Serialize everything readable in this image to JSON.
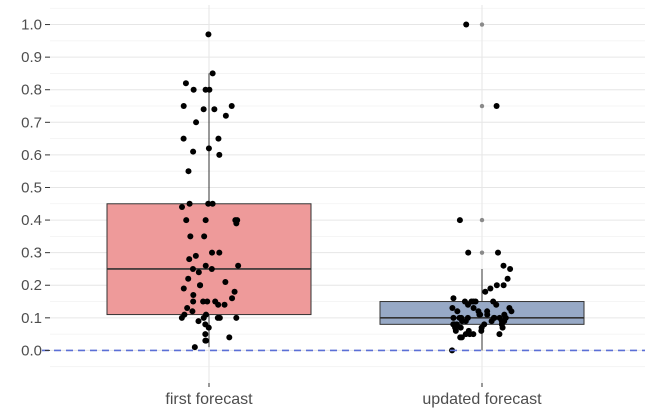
{
  "chart_data": {
    "type": "boxplot",
    "title": "",
    "xlabel": "",
    "ylabel": "",
    "ylim": [
      -0.1,
      1.06
    ],
    "y_ticks": [
      {
        "value": 0.0,
        "label": "0.0"
      },
      {
        "value": 0.1,
        "label": "0.1"
      },
      {
        "value": 0.2,
        "label": "0.2"
      },
      {
        "value": 0.3,
        "label": "0.3"
      },
      {
        "value": 0.4,
        "label": "0.4"
      },
      {
        "value": 0.5,
        "label": "0.5"
      },
      {
        "value": 0.6,
        "label": "0.6"
      },
      {
        "value": 0.7,
        "label": "0.7"
      },
      {
        "value": 0.8,
        "label": "0.8"
      },
      {
        "value": 0.9,
        "label": "0.9"
      },
      {
        "value": 1.0,
        "label": "1.0"
      }
    ],
    "reference_line": {
      "value": 0.0,
      "color": "#5b6fd6",
      "style": "dashed"
    },
    "grid": true,
    "categories": [
      "first forecast",
      "updated forecast"
    ],
    "boxes": [
      {
        "category": "first forecast",
        "color": "#ee9a9a",
        "q1": 0.11,
        "median": 0.25,
        "q3": 0.45,
        "whisker_low": 0.01,
        "whisker_high": 0.85,
        "outliers": [
          0.97
        ]
      },
      {
        "category": "updated forecast",
        "color": "#97a9c6",
        "q1": 0.08,
        "median": 0.1,
        "q3": 0.15,
        "whisker_low": 0.0,
        "whisker_high": 0.25,
        "outliers": [
          1.0,
          0.75,
          0.4,
          0.3
        ]
      }
    ],
    "points": [
      {
        "category": "first forecast",
        "values": [
          0.97,
          0.85,
          0.82,
          0.8,
          0.8,
          0.8,
          0.75,
          0.75,
          0.74,
          0.74,
          0.7,
          0.72,
          0.65,
          0.65,
          0.62,
          0.61,
          0.6,
          0.55,
          0.45,
          0.45,
          0.45,
          0.44,
          0.4,
          0.4,
          0.4,
          0.4,
          0.39,
          0.35,
          0.35,
          0.3,
          0.3,
          0.29,
          0.28,
          0.26,
          0.26,
          0.25,
          0.25,
          0.24,
          0.22,
          0.21,
          0.2,
          0.2,
          0.19,
          0.18,
          0.17,
          0.16,
          0.15,
          0.15,
          0.15,
          0.15,
          0.14,
          0.14,
          0.13,
          0.12,
          0.11,
          0.11,
          0.1,
          0.1,
          0.1,
          0.1,
          0.1,
          0.09,
          0.08,
          0.07,
          0.05,
          0.04,
          0.03,
          0.03,
          0.01
        ]
      },
      {
        "category": "updated forecast",
        "values": [
          1.0,
          0.75,
          0.4,
          0.3,
          0.3,
          0.26,
          0.25,
          0.22,
          0.2,
          0.2,
          0.19,
          0.18,
          0.16,
          0.15,
          0.15,
          0.15,
          0.15,
          0.15,
          0.14,
          0.14,
          0.13,
          0.13,
          0.13,
          0.12,
          0.12,
          0.12,
          0.12,
          0.11,
          0.11,
          0.11,
          0.11,
          0.1,
          0.1,
          0.1,
          0.1,
          0.1,
          0.1,
          0.1,
          0.1,
          0.09,
          0.09,
          0.09,
          0.09,
          0.09,
          0.08,
          0.08,
          0.08,
          0.08,
          0.08,
          0.07,
          0.07,
          0.07,
          0.07,
          0.06,
          0.06,
          0.06,
          0.05,
          0.05,
          0.05,
          0.05,
          0.04,
          0.04,
          0.0
        ]
      }
    ]
  }
}
